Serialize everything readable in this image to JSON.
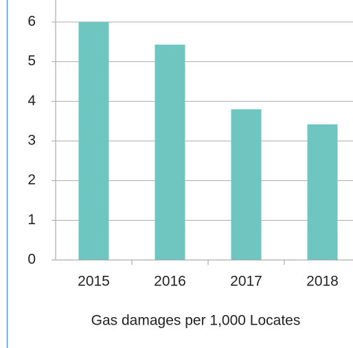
{
  "chart_data": {
    "type": "bar",
    "x_label": "Gas damages per 1,000 Locates",
    "categories": [
      "2015",
      "2016",
      "2017",
      "2018"
    ],
    "values": [
      6,
      5.43,
      3.8,
      3.42
    ],
    "color": "#6fc6c1",
    "ylim": [
      0,
      6
    ],
    "yticks": [
      0,
      1,
      2,
      3,
      4,
      5,
      6
    ],
    "grid": true
  }
}
